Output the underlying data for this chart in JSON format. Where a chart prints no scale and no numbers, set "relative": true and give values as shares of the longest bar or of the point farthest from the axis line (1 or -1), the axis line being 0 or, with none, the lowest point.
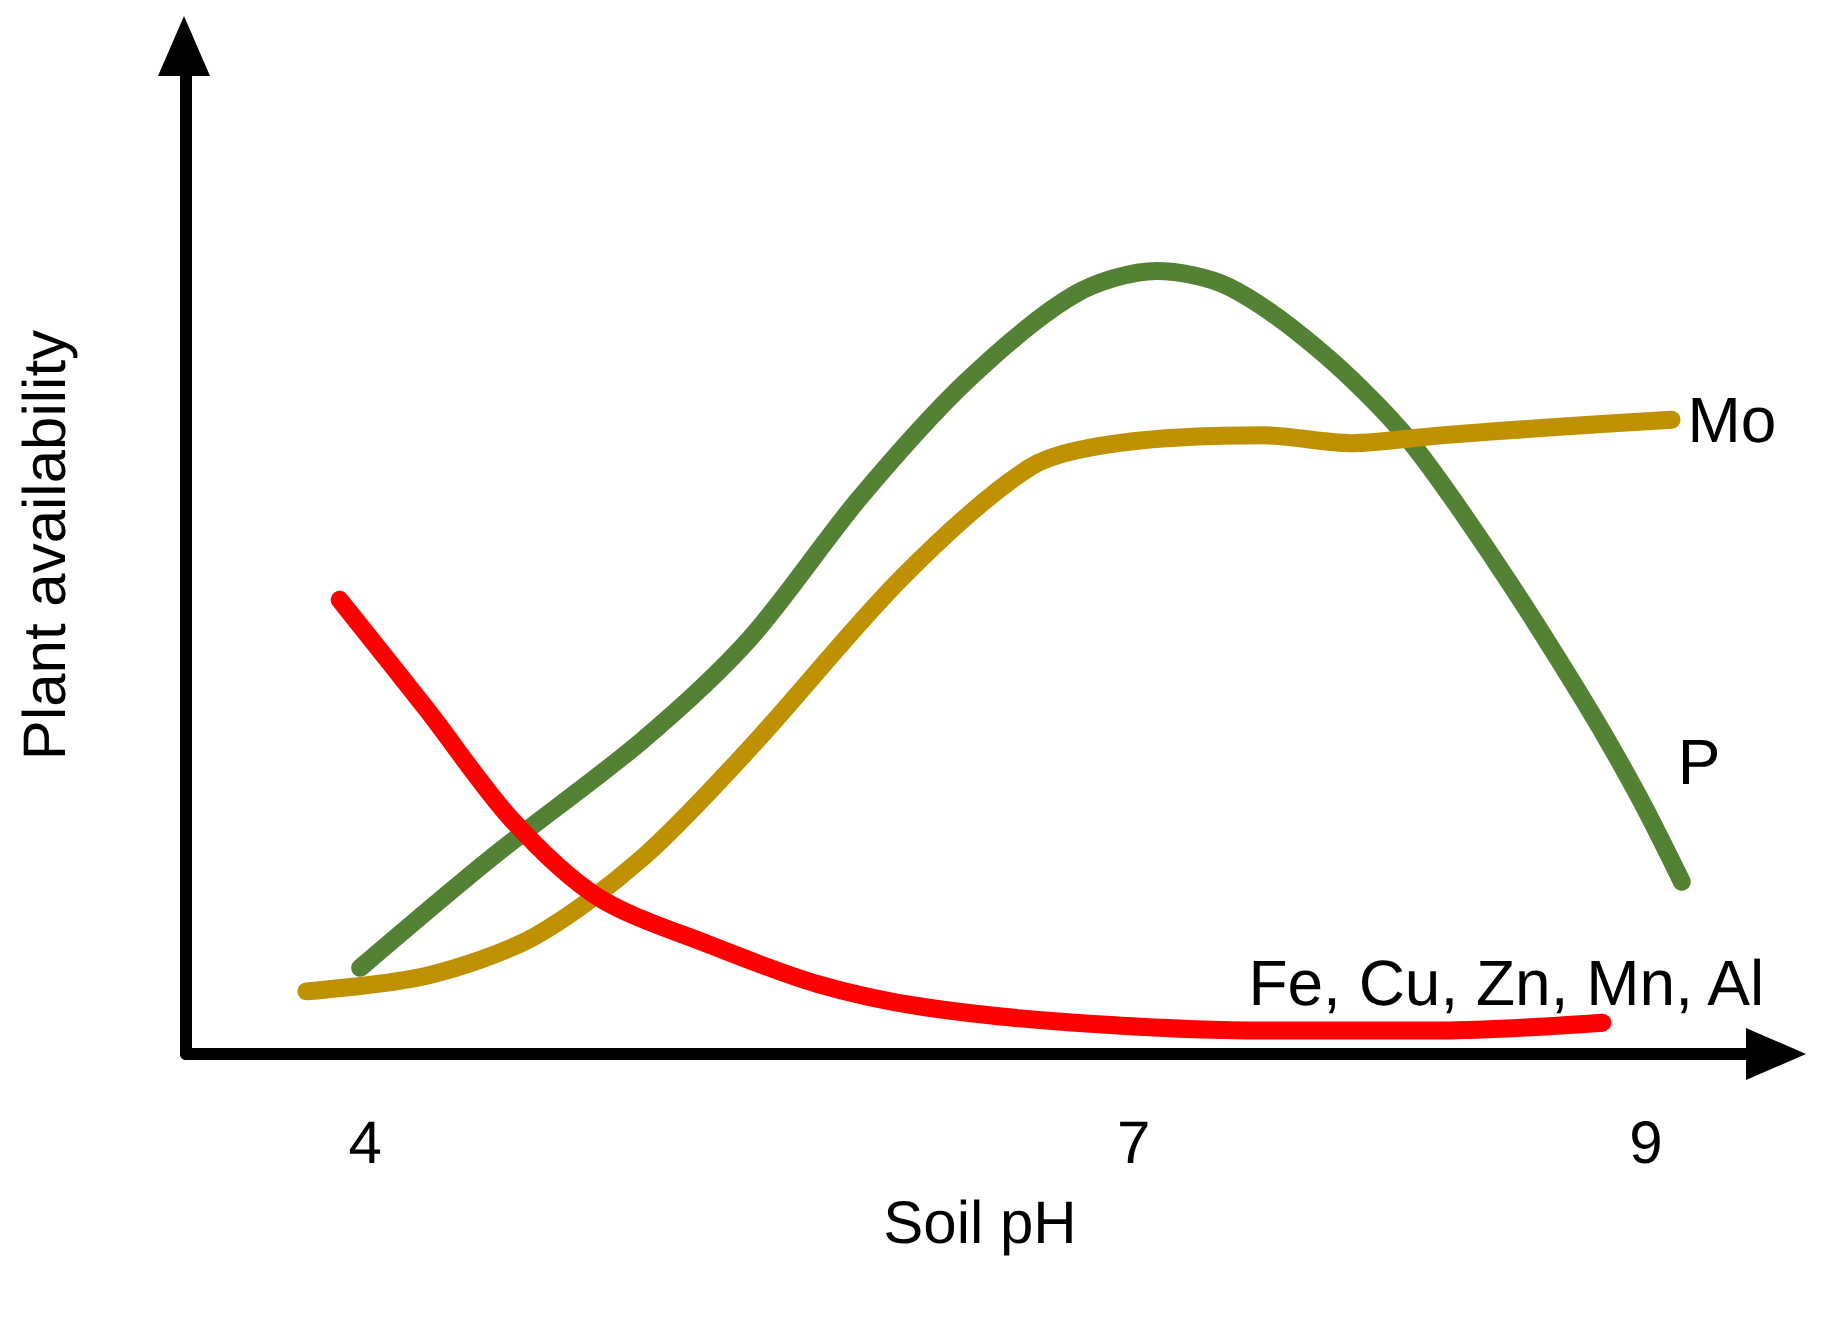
{
  "chart_data": {
    "type": "line",
    "xlabel": "Soil pH",
    "ylabel": "Plant availability",
    "relative": true,
    "xlim": [
      3.3,
      9.5
    ],
    "xticks": [
      4,
      7,
      9
    ],
    "grid": false,
    "legend": false,
    "marker": "none",
    "line_style": "solid",
    "series": [
      {
        "name": "P",
        "color": "#548235",
        "x": [
          3.98,
          4.49,
          5.08,
          5.5,
          5.93,
          6.35,
          6.77,
          7.09,
          7.37,
          7.72,
          8.06,
          8.41,
          8.76,
          8.97,
          9.14
        ],
        "values": [
          0.11,
          0.25,
          0.4,
          0.53,
          0.71,
          0.86,
          0.97,
          1,
          0.98,
          0.9,
          0.79,
          0.63,
          0.45,
          0.33,
          0.22
        ]
      },
      {
        "name": "Mo",
        "color": "#bf9000",
        "x": [
          3.77,
          4.24,
          4.66,
          5.08,
          5.5,
          6.1,
          6.6,
          6.94,
          7.51,
          7.85,
          8.2,
          8.62,
          9.1
        ],
        "values": [
          0.08,
          0.1,
          0.15,
          0.25,
          0.39,
          0.61,
          0.75,
          0.78,
          0.79,
          0.78,
          0.79,
          0.8,
          0.81
        ]
      },
      {
        "name": "Fe, Cu, Zn, Mn, Al",
        "color": "#ff0000",
        "x": [
          3.9,
          4.24,
          4.57,
          4.91,
          5.34,
          5.76,
          6.18,
          6.77,
          7.51,
          8.2,
          8.83
        ],
        "values": [
          0.58,
          0.44,
          0.3,
          0.2,
          0.14,
          0.09,
          0.06,
          0.04,
          0.03,
          0.03,
          0.04
        ]
      }
    ]
  }
}
